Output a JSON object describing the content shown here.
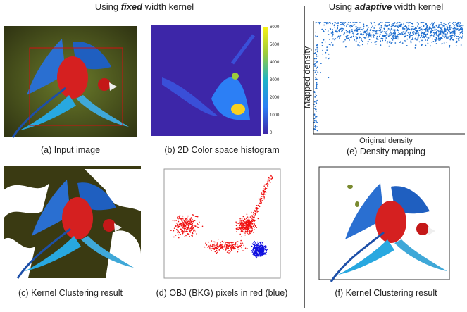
{
  "left_heading": {
    "parts": [
      "Using ",
      "fixed",
      " width kernel"
    ]
  },
  "right_heading": {
    "parts": [
      "Using ",
      "adaptive",
      " width kernel"
    ]
  },
  "panels": {
    "a": {
      "caption": "(a) Input image"
    },
    "b": {
      "caption": "(b) 2D Color space histogram",
      "colorbar_ticks": [
        "6000",
        "5000",
        "4000",
        "3000",
        "2000",
        "1000",
        "0"
      ]
    },
    "c": {
      "caption": "(c) Kernel Clustering result"
    },
    "d": {
      "caption": "(d) OBJ (BKG) pixels in red (blue)"
    },
    "e": {
      "caption": "(e) Density mapping",
      "y_label": "Mapped density",
      "x_label": "Original density"
    },
    "f": {
      "caption": "(f) Kernel Clustering result"
    }
  }
}
